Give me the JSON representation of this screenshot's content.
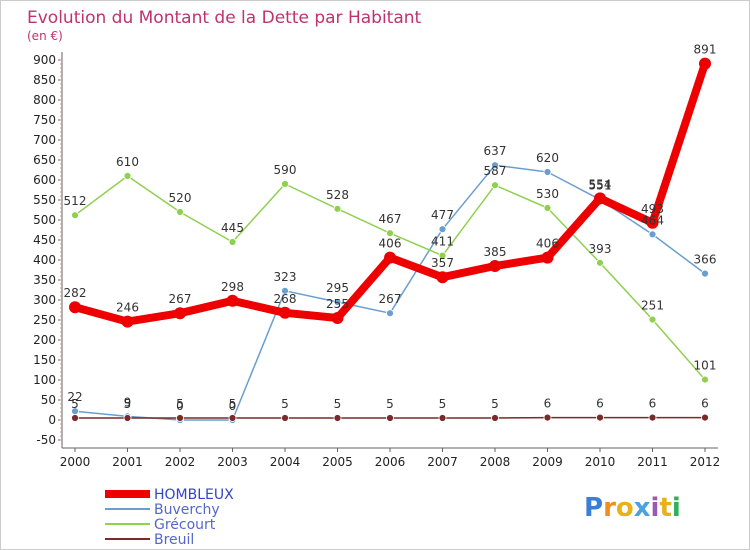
{
  "chart_data": {
    "type": "line",
    "title": "Evolution du Montant de la Dette par Habitant",
    "subtitle": "(en €)",
    "x": [
      "2000",
      "2001",
      "2002",
      "2003",
      "2004",
      "2005",
      "2006",
      "2007",
      "2008",
      "2009",
      "2010",
      "2011",
      "2012"
    ],
    "ylim": [
      -50,
      900
    ],
    "yticks": [
      -50,
      0,
      50,
      100,
      150,
      200,
      250,
      300,
      350,
      400,
      450,
      500,
      550,
      600,
      650,
      700,
      750,
      800,
      850,
      900
    ],
    "grid": false,
    "legend_position": "bottom-left",
    "series": [
      {
        "name": "Buverchy",
        "color": "#6a9ecf",
        "values": [
          22,
          9,
          0,
          0,
          323,
          295,
          267,
          477,
          637,
          620,
          551,
          464,
          366
        ]
      },
      {
        "name": "Grécourt",
        "color": "#8fd14f",
        "values": [
          512,
          610,
          520,
          445,
          590,
          528,
          467,
          411,
          587,
          530,
          393,
          251,
          101
        ]
      },
      {
        "name": "Breuil",
        "color": "#7a2a2a",
        "values": [
          5,
          5,
          5,
          5,
          5,
          5,
          5,
          5,
          5,
          6,
          6,
          6,
          6
        ]
      },
      {
        "name": "HOMBLEUX",
        "color": "#ee0000",
        "values": [
          282,
          246,
          267,
          298,
          268,
          255,
          406,
          357,
          385,
          406,
          554,
          493,
          891
        ]
      }
    ],
    "legend": [
      "HOMBLEUX",
      "Buverchy",
      "Grécourt",
      "Breuil"
    ]
  },
  "logo": {
    "text": "Proxiti"
  }
}
